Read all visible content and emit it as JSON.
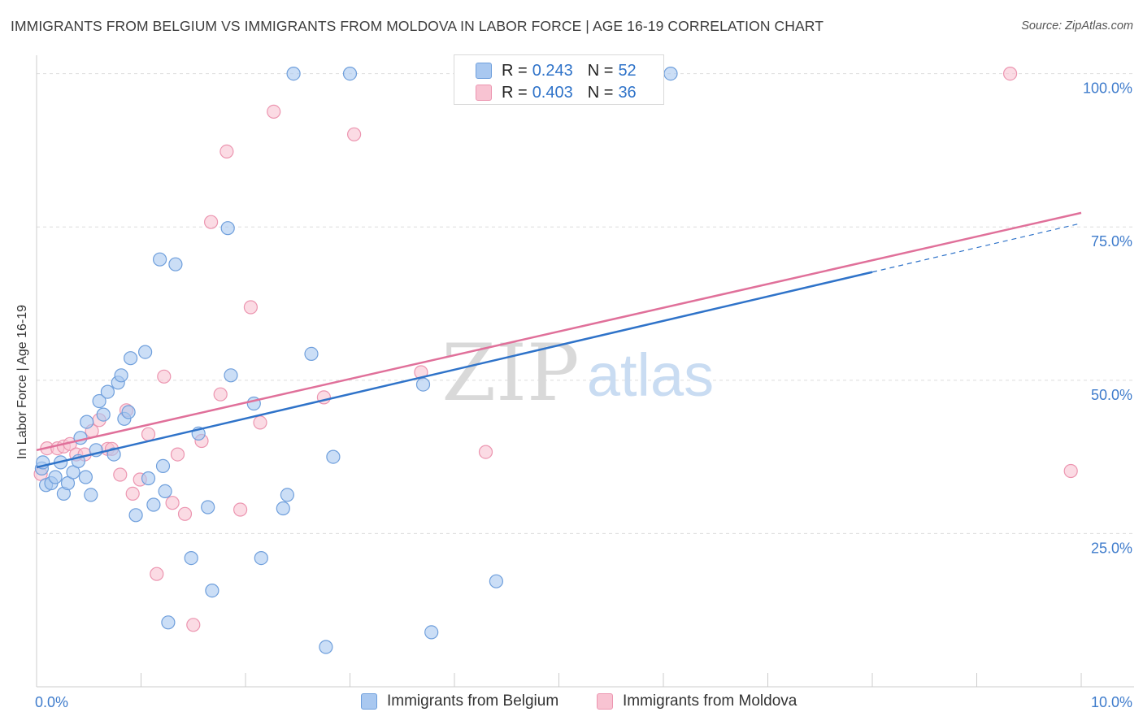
{
  "title": "IMMIGRANTS FROM BELGIUM VS IMMIGRANTS FROM MOLDOVA IN LABOR FORCE | AGE 16-19 CORRELATION CHART",
  "source": "Source: ZipAtlas.com",
  "watermark": {
    "part1": "ZIP",
    "part2": "atlas"
  },
  "legend": {
    "rows": [
      {
        "r_label": "R =",
        "r_value": "0.243",
        "n_label": "N =",
        "n_value": "52"
      },
      {
        "r_label": "R =",
        "r_value": "0.403",
        "n_label": "N =",
        "n_value": "36"
      }
    ]
  },
  "colors": {
    "belgium_fill": "#a9c8f0",
    "belgium_stroke": "#6f9fdc",
    "belgium_line": "#2f73c9",
    "moldova_fill": "#f8c3d2",
    "moldova_stroke": "#ec95b0",
    "moldova_line": "#e0709a",
    "tick_label": "#3f7ccc",
    "grid": "#dddddd"
  },
  "chart_data": {
    "type": "scatter",
    "title": "IMMIGRANTS FROM BELGIUM VS IMMIGRANTS FROM MOLDOVA IN LABOR FORCE | AGE 16-19 CORRELATION CHART",
    "xlabel": "",
    "ylabel": "In Labor Force | Age 16-19",
    "xlim": [
      0,
      10
    ],
    "ylim": [
      0,
      103
    ],
    "x_tick_labels": [
      {
        "value": 0,
        "label": "0.0%"
      },
      {
        "value": 10,
        "label": "10.0%"
      }
    ],
    "y_tick_labels": [
      {
        "value": 25,
        "label": "25.0%"
      },
      {
        "value": 50,
        "label": "50.0%"
      },
      {
        "value": 75,
        "label": "75.0%"
      },
      {
        "value": 100,
        "label": "100.0%"
      }
    ],
    "grid": true,
    "series": [
      {
        "name": "Immigrants from Belgium",
        "color": "#6f9fdc",
        "points": [
          [
            0.05,
            35.6
          ],
          [
            0.06,
            36.6
          ],
          [
            0.09,
            32.9
          ],
          [
            0.14,
            33.2
          ],
          [
            0.18,
            34.2
          ],
          [
            0.23,
            36.6
          ],
          [
            0.26,
            31.5
          ],
          [
            0.3,
            33.2
          ],
          [
            0.35,
            35.0
          ],
          [
            0.4,
            36.8
          ],
          [
            0.42,
            40.6
          ],
          [
            0.47,
            34.2
          ],
          [
            0.48,
            43.2
          ],
          [
            0.52,
            31.3
          ],
          [
            0.57,
            38.6
          ],
          [
            0.6,
            46.6
          ],
          [
            0.64,
            44.4
          ],
          [
            0.68,
            48.1
          ],
          [
            0.74,
            37.9
          ],
          [
            0.78,
            49.6
          ],
          [
            0.81,
            50.8
          ],
          [
            0.84,
            43.7
          ],
          [
            0.88,
            44.8
          ],
          [
            0.9,
            53.6
          ],
          [
            0.95,
            28.0
          ],
          [
            1.04,
            54.6
          ],
          [
            1.07,
            34.0
          ],
          [
            1.12,
            29.7
          ],
          [
            1.18,
            69.7
          ],
          [
            1.21,
            36.0
          ],
          [
            1.23,
            31.9
          ],
          [
            1.26,
            10.5
          ],
          [
            1.33,
            68.9
          ],
          [
            1.48,
            21.0
          ],
          [
            1.55,
            41.3
          ],
          [
            1.64,
            29.3
          ],
          [
            1.68,
            15.7
          ],
          [
            1.83,
            74.8
          ],
          [
            1.86,
            50.8
          ],
          [
            2.08,
            46.2
          ],
          [
            2.15,
            21.0
          ],
          [
            2.36,
            29.1
          ],
          [
            2.4,
            31.3
          ],
          [
            2.46,
            100.0
          ],
          [
            2.63,
            54.3
          ],
          [
            2.77,
            6.5
          ],
          [
            2.84,
            37.5
          ],
          [
            3.0,
            100.0
          ],
          [
            3.7,
            49.3
          ],
          [
            3.78,
            8.9
          ],
          [
            4.4,
            17.2
          ],
          [
            6.07,
            100.0
          ]
        ]
      },
      {
        "name": "Immigrants from Moldova",
        "color": "#ec95b0",
        "points": [
          [
            0.04,
            34.7
          ],
          [
            0.1,
            38.9
          ],
          [
            0.2,
            38.9
          ],
          [
            0.26,
            39.2
          ],
          [
            0.32,
            39.6
          ],
          [
            0.38,
            37.9
          ],
          [
            0.46,
            37.9
          ],
          [
            0.53,
            41.7
          ],
          [
            0.6,
            43.5
          ],
          [
            0.68,
            38.8
          ],
          [
            0.72,
            38.8
          ],
          [
            0.8,
            34.6
          ],
          [
            0.86,
            45.1
          ],
          [
            0.92,
            31.5
          ],
          [
            0.99,
            33.8
          ],
          [
            1.07,
            41.2
          ],
          [
            1.15,
            18.4
          ],
          [
            1.22,
            50.6
          ],
          [
            1.3,
            30.0
          ],
          [
            1.35,
            37.9
          ],
          [
            1.42,
            28.2
          ],
          [
            1.5,
            10.1
          ],
          [
            1.58,
            40.1
          ],
          [
            1.67,
            75.8
          ],
          [
            1.76,
            47.7
          ],
          [
            1.82,
            87.3
          ],
          [
            1.95,
            28.9
          ],
          [
            2.05,
            61.9
          ],
          [
            2.14,
            43.1
          ],
          [
            2.27,
            93.8
          ],
          [
            2.75,
            47.2
          ],
          [
            3.04,
            90.1
          ],
          [
            3.68,
            51.3
          ],
          [
            4.3,
            38.3
          ],
          [
            9.32,
            100.0
          ],
          [
            9.9,
            35.2
          ]
        ]
      }
    ],
    "trend_lines": [
      {
        "name": "Immigrants from Belgium",
        "x_start": 0.0,
        "y_start": 35.8,
        "x_end": 10.0,
        "y_end": 75.6,
        "solid_until_x": 8.0
      },
      {
        "name": "Immigrants from Moldova",
        "x_start": 0.0,
        "y_start": 38.6,
        "x_end": 10.0,
        "y_end": 77.3,
        "solid_until_x": 10.0
      }
    ]
  }
}
